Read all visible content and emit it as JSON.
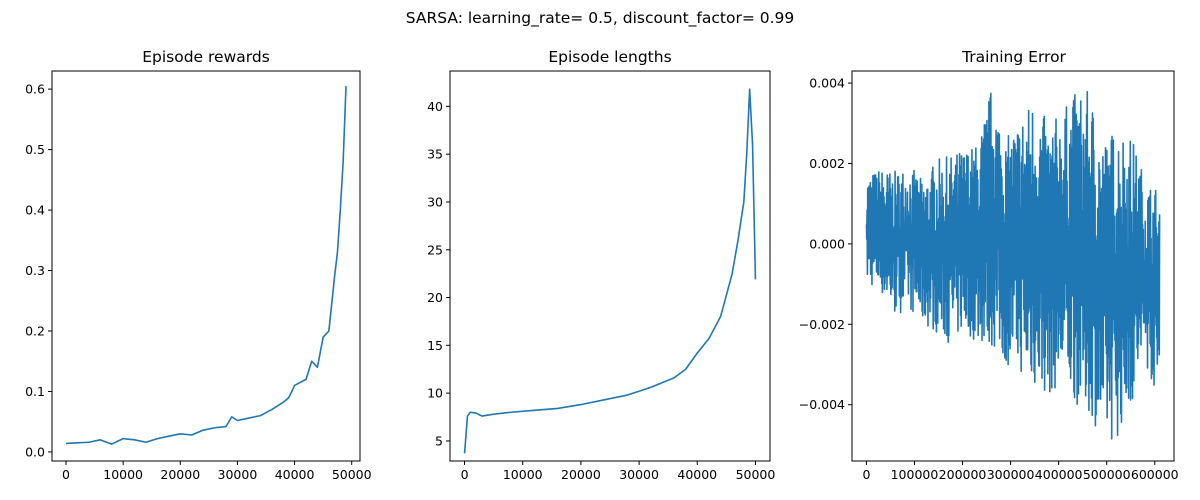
{
  "suptitle": "SARSA: learning_rate= 0.5, discount_factor= 0.99",
  "chart_data": [
    {
      "type": "line",
      "title": "Episode rewards",
      "xlabel": "",
      "ylabel": "",
      "xlim": [
        -2450,
        51450
      ],
      "ylim": [
        -0.015,
        0.63
      ],
      "xticks": [
        0,
        10000,
        20000,
        30000,
        40000,
        50000
      ],
      "xtick_labels": [
        "0",
        "10000",
        "20000",
        "30000",
        "40000",
        "50000"
      ],
      "yticks": [
        0.0,
        0.1,
        0.2,
        0.3,
        0.4,
        0.5,
        0.6
      ],
      "ytick_labels": [
        "0.0",
        "0.1",
        "0.2",
        "0.3",
        "0.4",
        "0.5",
        "0.6"
      ],
      "grid": false,
      "series": [
        {
          "color": "#1f77b4",
          "x": [
            0,
            2000,
            4000,
            6000,
            8000,
            10000,
            12000,
            14000,
            16000,
            18000,
            20000,
            22000,
            24000,
            26000,
            28000,
            29000,
            30000,
            32000,
            34000,
            36000,
            38000,
            39000,
            40000,
            42000,
            43000,
            44000,
            45000,
            46000,
            47000,
            47500,
            48000,
            48500,
            49000
          ],
          "y": [
            0.014,
            0.015,
            0.016,
            0.02,
            0.013,
            0.022,
            0.02,
            0.016,
            0.022,
            0.026,
            0.03,
            0.028,
            0.036,
            0.04,
            0.042,
            0.058,
            0.052,
            0.056,
            0.06,
            0.07,
            0.082,
            0.09,
            0.11,
            0.12,
            0.15,
            0.14,
            0.19,
            0.2,
            0.29,
            0.33,
            0.4,
            0.48,
            0.605
          ]
        }
      ]
    },
    {
      "type": "line",
      "title": "Episode lengths",
      "xlabel": "",
      "ylabel": "",
      "xlim": [
        -2500,
        52500
      ],
      "ylim": [
        2.9,
        43.7
      ],
      "xticks": [
        0,
        10000,
        20000,
        30000,
        40000,
        50000
      ],
      "xtick_labels": [
        "0",
        "10000",
        "20000",
        "30000",
        "40000",
        "50000"
      ],
      "yticks": [
        5,
        10,
        15,
        20,
        25,
        30,
        35,
        40
      ],
      "ytick_labels": [
        "5",
        "10",
        "15",
        "20",
        "25",
        "30",
        "35",
        "40"
      ],
      "grid": false,
      "series": [
        {
          "color": "#1f77b4",
          "x": [
            0,
            500,
            1000,
            2000,
            3000,
            5000,
            8000,
            12000,
            16000,
            20000,
            24000,
            28000,
            32000,
            36000,
            38000,
            40000,
            42000,
            44000,
            46000,
            47000,
            48000,
            48500,
            49000,
            49500,
            50000
          ],
          "y": [
            3.7,
            7.6,
            8.0,
            7.9,
            7.6,
            7.8,
            8.0,
            8.2,
            8.4,
            8.8,
            9.3,
            9.8,
            10.6,
            11.6,
            12.5,
            14.2,
            15.7,
            18.0,
            22.5,
            26.0,
            30.0,
            35.0,
            41.8,
            36.0,
            21.9
          ]
        }
      ]
    },
    {
      "type": "line",
      "title": "Training Error",
      "xlabel": "",
      "ylabel": "",
      "xlim": [
        -30000,
        640000
      ],
      "ylim": [
        -0.0054,
        0.0043
      ],
      "xticks": [
        0,
        100000,
        200000,
        300000,
        400000,
        500000,
        600000
      ],
      "xtick_labels": [
        "0",
        "100000",
        "200000",
        "300000",
        "400000",
        "500000",
        "600000"
      ],
      "yticks": [
        -0.004,
        -0.002,
        0.0,
        0.002,
        0.004
      ],
      "ytick_labels": [
        "−0.004",
        "−0.002",
        "0.000",
        "0.002",
        "0.004"
      ],
      "grid": false,
      "series": [
        {
          "color": "#1f77b4",
          "x_max": 610000,
          "band_upper": [
            0.0017,
            0.0019,
            0.0018,
            0.002,
            0.0016,
            0.0021,
            0.0022,
            0.0024,
            0.0025,
            0.004,
            0.0026,
            0.0032,
            0.0037,
            0.003,
            0.0033,
            0.0038,
            0.0038,
            0.0026,
            0.003,
            0.0027,
            0.0016,
            0.0014
          ],
          "band_lower": [
            -0.001,
            -0.0012,
            -0.0018,
            -0.0016,
            -0.002,
            -0.0022,
            -0.0025,
            -0.0022,
            -0.0025,
            -0.0026,
            -0.003,
            -0.0032,
            -0.0036,
            -0.0038,
            -0.0035,
            -0.004,
            -0.0042,
            -0.005,
            -0.0048,
            -0.004,
            -0.003,
            -0.004
          ]
        }
      ]
    }
  ]
}
